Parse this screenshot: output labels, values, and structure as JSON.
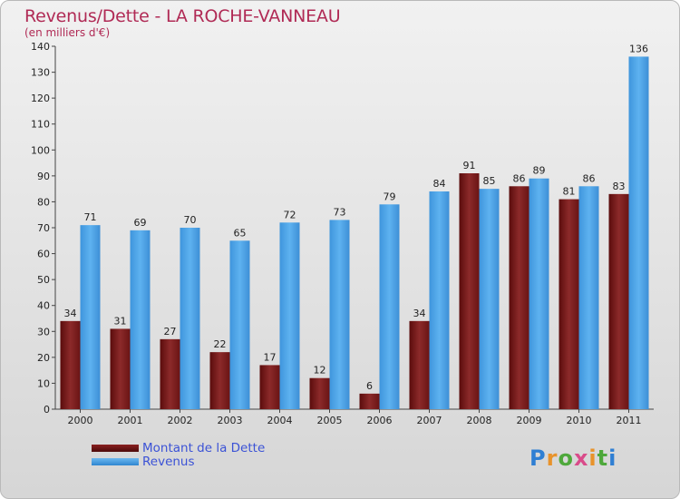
{
  "chart_data": {
    "type": "bar",
    "title": "Revenus/Dette - LA ROCHE-VANNEAU",
    "subtitle": "(en milliers d'€)",
    "categories": [
      "2000",
      "2001",
      "2002",
      "2003",
      "2004",
      "2005",
      "2006",
      "2007",
      "2008",
      "2009",
      "2010",
      "2011"
    ],
    "series": [
      {
        "name": "Montant de la Dette",
        "color": "#7a1a1a",
        "values": [
          34,
          31,
          27,
          22,
          17,
          12,
          6,
          34,
          91,
          86,
          81,
          83
        ]
      },
      {
        "name": "Revenus",
        "color": "#4aa3e8",
        "values": [
          71,
          69,
          70,
          65,
          72,
          73,
          79,
          84,
          85,
          89,
          86,
          136
        ]
      }
    ],
    "ylim": [
      0,
      140
    ],
    "yticks": [
      0,
      10,
      20,
      30,
      40,
      50,
      60,
      70,
      80,
      90,
      100,
      110,
      120,
      130,
      140
    ],
    "grid": false,
    "legend": "bottom-left"
  },
  "logo": {
    "text": "Proxiti",
    "letters": [
      "P",
      "r",
      "o",
      "x",
      "i",
      "t",
      "i"
    ]
  }
}
